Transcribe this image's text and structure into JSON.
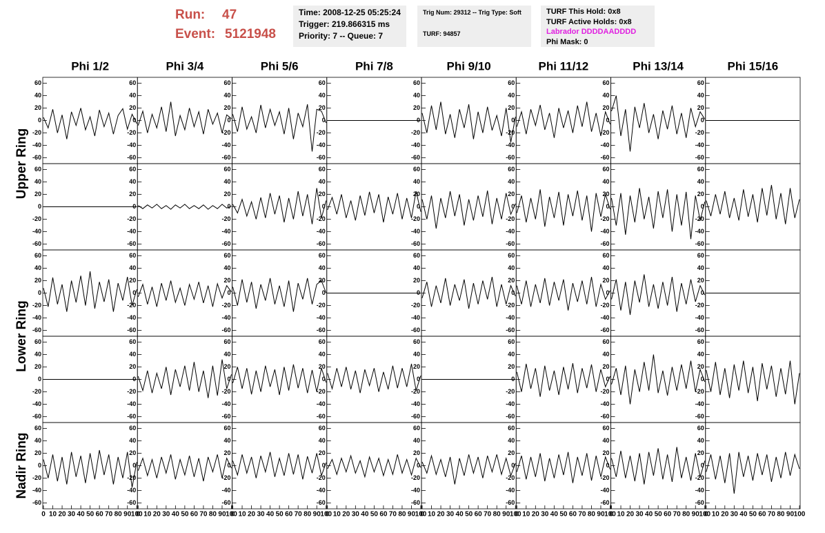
{
  "header": {
    "run_label": "Run:",
    "run": "47",
    "event_label": "Event:",
    "event": "5121948",
    "time": "Time: 2008-12-25 05:25:24",
    "trigger": "Trigger: 219.866315 ms",
    "priority": "Priority: 7 -- Queue: 7",
    "trig_num": "Trig Num: 29312 -- Trig Type: Soft",
    "turf": "TURF: 94857",
    "turf_hold": "TURF This Hold: 0x8",
    "turf_active": "TURF Active Holds: 0x8",
    "labrador": "Labrador DDDDAADDDD",
    "phi_mask": "Phi Mask: 0"
  },
  "chart_data": {
    "type": "waveform-grid",
    "columns": [
      "Phi 1/2",
      "Phi 3/4",
      "Phi 5/6",
      "Phi 7/8",
      "Phi 9/10",
      "Phi 11/12",
      "Phi 13/14",
      "Phi 15/16"
    ],
    "row_labels": [
      "Upper Ring",
      "Lower Ring",
      "Nadir Ring"
    ],
    "color": "#000000",
    "x": [
      0,
      5,
      10,
      15,
      20,
      25,
      30,
      35,
      40,
      45,
      50,
      55,
      60,
      65,
      70,
      75,
      80,
      85,
      90,
      95,
      100
    ],
    "xlim": [
      0,
      100
    ],
    "xticks": [
      0,
      10,
      20,
      30,
      40,
      50,
      60,
      70,
      80,
      90,
      100
    ],
    "ylim": [
      -65,
      65
    ],
    "yticks": [
      -60,
      -40,
      -20,
      0,
      20,
      40,
      60
    ],
    "panels": [
      [
        {
          "values": [
            5,
            -12,
            18,
            -20,
            9,
            -30,
            14,
            -8,
            20,
            -15,
            6,
            -25,
            17,
            -10,
            12,
            -22,
            8,
            19,
            -14,
            10,
            -5
          ]
        },
        {
          "values": [
            -8,
            15,
            -20,
            10,
            -12,
            22,
            -18,
            30,
            -25,
            8,
            -15,
            20,
            -10,
            14,
            -22,
            18,
            -6,
            12,
            -20,
            9,
            3
          ]
        },
        {
          "values": [
            10,
            -18,
            22,
            -14,
            6,
            -20,
            25,
            -12,
            18,
            -8,
            14,
            -22,
            20,
            -30,
            12,
            -10,
            26,
            -50,
            18,
            15,
            -4
          ]
        },
        {
          "values": [
            0,
            0,
            0,
            0,
            0,
            0,
            0,
            0,
            0,
            0,
            0,
            0,
            0,
            0,
            0,
            0,
            0,
            0,
            0,
            0,
            0
          ]
        },
        {
          "values": [
            12,
            -20,
            24,
            -15,
            30,
            -22,
            10,
            -28,
            18,
            -12,
            26,
            -30,
            14,
            -20,
            22,
            -16,
            8,
            -25,
            20,
            -35,
            6
          ]
        },
        {
          "values": [
            -10,
            14,
            -22,
            18,
            -8,
            25,
            -15,
            12,
            -28,
            20,
            -12,
            16,
            -20,
            24,
            -10,
            30,
            -18,
            12,
            -25,
            14,
            -6
          ]
        },
        {
          "values": [
            15,
            40,
            -25,
            18,
            -50,
            22,
            -12,
            28,
            -20,
            10,
            -30,
            16,
            -14,
            24,
            -22,
            12,
            -28,
            20,
            -10,
            14,
            2
          ]
        },
        {
          "values": [
            0,
            0,
            0,
            0,
            0,
            0,
            0,
            0,
            0,
            0,
            0,
            0,
            0,
            0,
            0,
            0,
            0,
            0,
            0,
            0,
            0
          ]
        }
      ],
      [
        {
          "values": [
            0,
            0,
            0,
            0,
            0,
            0,
            0,
            0,
            0,
            0,
            0,
            0,
            0,
            0,
            0,
            0,
            0,
            0,
            0,
            0,
            0
          ]
        },
        {
          "values": [
            2,
            -3,
            3,
            -2,
            4,
            -3,
            2,
            -4,
            3,
            -2,
            4,
            -3,
            2,
            -3,
            3,
            -4,
            2,
            -3,
            4,
            -2,
            1
          ]
        },
        {
          "values": [
            4,
            -10,
            12,
            -15,
            8,
            -20,
            15,
            -18,
            22,
            -12,
            18,
            -25,
            14,
            -20,
            25,
            -15,
            20,
            -28,
            30,
            -18,
            10
          ]
        },
        {
          "values": [
            -5,
            15,
            -12,
            20,
            -18,
            10,
            -22,
            18,
            -14,
            24,
            -10,
            20,
            -25,
            16,
            -12,
            22,
            -20,
            14,
            -18,
            25,
            -8
          ]
        },
        {
          "values": [
            12,
            -20,
            18,
            -35,
            14,
            -18,
            25,
            -15,
            20,
            -30,
            12,
            -22,
            18,
            -16,
            26,
            -28,
            14,
            -20,
            22,
            -12,
            5
          ]
        },
        {
          "values": [
            -10,
            18,
            -25,
            14,
            -20,
            28,
            -32,
            16,
            -18,
            24,
            -30,
            20,
            -15,
            26,
            -22,
            18,
            -40,
            22,
            -16,
            20,
            -4
          ]
        },
        {
          "values": [
            14,
            -30,
            22,
            -45,
            18,
            -25,
            30,
            -20,
            16,
            -35,
            25,
            -18,
            28,
            -40,
            20,
            -30,
            24,
            -52,
            18,
            -22,
            8
          ]
        },
        {
          "values": [
            10,
            -15,
            20,
            -12,
            25,
            -18,
            14,
            -22,
            28,
            -16,
            20,
            -25,
            30,
            -14,
            35,
            -20,
            22,
            -28,
            30,
            -18,
            12
          ]
        }
      ],
      [
        {
          "values": [
            8,
            -22,
            25,
            -18,
            14,
            -30,
            20,
            -15,
            28,
            -20,
            35,
            -25,
            18,
            -14,
            22,
            -30,
            16,
            -12,
            26,
            -20,
            6
          ]
        },
        {
          "values": [
            -6,
            14,
            -18,
            10,
            -22,
            16,
            -12,
            20,
            -15,
            8,
            -20,
            14,
            -10,
            18,
            -16,
            12,
            -22,
            15,
            -8,
            12,
            2
          ]
        },
        {
          "values": [
            10,
            -20,
            22,
            -15,
            18,
            -25,
            14,
            -12,
            24,
            -18,
            12,
            -22,
            20,
            -30,
            16,
            -10,
            24,
            -18,
            14,
            20,
            0
          ]
        },
        {
          "values": [
            0,
            0,
            0,
            0,
            0,
            0,
            0,
            0,
            0,
            0,
            0,
            0,
            0,
            0,
            0,
            0,
            0,
            0,
            0,
            0,
            0
          ]
        },
        {
          "values": [
            -8,
            18,
            -22,
            12,
            -16,
            24,
            -20,
            14,
            -12,
            22,
            -25,
            16,
            -18,
            20,
            -10,
            26,
            -22,
            14,
            -18,
            12,
            -5
          ]
        },
        {
          "values": [
            12,
            -18,
            20,
            -22,
            14,
            -16,
            24,
            -20,
            18,
            -12,
            22,
            -28,
            16,
            -14,
            20,
            -18,
            26,
            -22,
            14,
            -10,
            4
          ]
        },
        {
          "values": [
            -10,
            22,
            -28,
            18,
            -35,
            20,
            -15,
            30,
            -22,
            14,
            -25,
            18,
            -20,
            26,
            -30,
            16,
            -18,
            22,
            -14,
            12,
            -3
          ]
        },
        {
          "values": [
            0,
            0,
            0,
            0,
            0,
            0,
            0,
            0,
            0,
            0,
            0,
            0,
            0,
            0,
            0,
            0,
            0,
            0,
            0,
            0,
            0
          ]
        }
      ],
      [
        {
          "values": [
            0,
            0,
            0,
            0,
            0,
            0,
            0,
            0,
            0,
            0,
            0,
            0,
            0,
            0,
            0,
            0,
            0,
            0,
            0,
            0,
            0
          ]
        },
        {
          "values": [
            5,
            -18,
            14,
            -22,
            10,
            -15,
            20,
            -25,
            16,
            -12,
            22,
            -18,
            28,
            -20,
            14,
            -30,
            22,
            -26,
            32,
            -15,
            8
          ]
        },
        {
          "values": [
            -6,
            20,
            -15,
            18,
            -24,
            14,
            -20,
            22,
            -12,
            16,
            -25,
            20,
            -18,
            24,
            -14,
            18,
            -22,
            15,
            -20,
            18,
            -5
          ]
        },
        {
          "values": [
            10,
            -15,
            18,
            -12,
            20,
            -16,
            14,
            -22,
            16,
            -10,
            18,
            -20,
            12,
            -16,
            22,
            -14,
            18,
            -12,
            25,
            -18,
            6
          ]
        },
        {
          "values": [
            0,
            0,
            0,
            0,
            0,
            0,
            0,
            0,
            0,
            0,
            0,
            0,
            0,
            0,
            0,
            0,
            0,
            0,
            0,
            0,
            0
          ]
        },
        {
          "values": [
            12,
            -20,
            25,
            -15,
            18,
            -28,
            22,
            -18,
            14,
            -25,
            20,
            -16,
            26,
            -22,
            18,
            -14,
            24,
            -20,
            16,
            -12,
            5
          ]
        },
        {
          "values": [
            -8,
            18,
            -25,
            22,
            -40,
            16,
            -20,
            28,
            -18,
            40,
            -22,
            14,
            -26,
            20,
            -18,
            24,
            -15,
            30,
            -20,
            16,
            -4
          ]
        },
        {
          "values": [
            15,
            -20,
            28,
            -25,
            18,
            -30,
            24,
            -18,
            30,
            -22,
            20,
            -35,
            26,
            -16,
            22,
            -28,
            18,
            -24,
            30,
            -40,
            10
          ]
        }
      ],
      [
        {
          "values": [
            10,
            -20,
            18,
            -25,
            14,
            -30,
            22,
            -18,
            16,
            -28,
            20,
            -22,
            25,
            -15,
            18,
            -30,
            14,
            -20,
            22,
            -35,
            6
          ]
        },
        {
          "values": [
            -8,
            12,
            -16,
            10,
            -20,
            14,
            -12,
            18,
            -22,
            10,
            -15,
            16,
            -18,
            12,
            -25,
            14,
            -10,
            18,
            -20,
            12,
            -4
          ]
        },
        {
          "values": [
            8,
            -15,
            18,
            -12,
            14,
            -20,
            16,
            -10,
            22,
            -18,
            12,
            -16,
            20,
            -14,
            18,
            -22,
            15,
            -12,
            20,
            -16,
            5
          ]
        },
        {
          "values": [
            -5,
            10,
            -14,
            12,
            -10,
            16,
            -12,
            8,
            -18,
            14,
            -10,
            12,
            -16,
            10,
            -14,
            18,
            -12,
            10,
            -15,
            12,
            -3
          ]
        },
        {
          "values": [
            6,
            -12,
            16,
            -14,
            10,
            -18,
            14,
            -30,
            12,
            -16,
            18,
            -12,
            14,
            -20,
            16,
            -10,
            18,
            -14,
            12,
            -16,
            4
          ]
        },
        {
          "values": [
            -10,
            16,
            -22,
            14,
            -18,
            20,
            -25,
            12,
            -20,
            18,
            -15,
            22,
            -28,
            14,
            -16,
            20,
            -24,
            16,
            -18,
            14,
            -6
          ]
        },
        {
          "values": [
            12,
            -18,
            24,
            -20,
            16,
            -25,
            20,
            -30,
            22,
            -16,
            28,
            -22,
            18,
            -26,
            30,
            -20,
            14,
            -24,
            20,
            -18,
            8
          ]
        },
        {
          "values": [
            -10,
            18,
            -22,
            16,
            -28,
            20,
            -45,
            22,
            -18,
            16,
            -24,
            20,
            -15,
            18,
            -26,
            14,
            -20,
            22,
            -16,
            18,
            -5
          ]
        }
      ]
    ]
  }
}
